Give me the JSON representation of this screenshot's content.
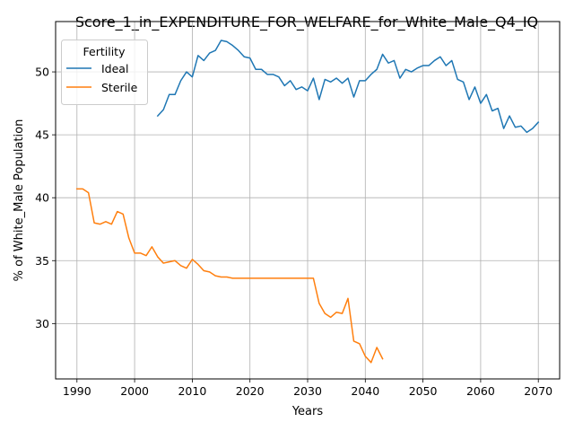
{
  "chart_data": {
    "type": "line",
    "title": "Score_1_in_EXPENDITURE_FOR_WELFARE_for_White_Male_Q4_IQ",
    "xlabel": "Years",
    "ylabel": "% of White_Male Population",
    "xlim": [
      1986.3,
      2073.7
    ],
    "ylim": [
      25.6,
      54.0
    ],
    "xticks": [
      1990,
      2000,
      2010,
      2020,
      2030,
      2040,
      2050,
      2060,
      2070
    ],
    "yticks": [
      30,
      35,
      40,
      45,
      50
    ],
    "grid": true,
    "legend": {
      "title": "Fertility",
      "placement": "upper-left"
    },
    "series": [
      {
        "name": "Ideal",
        "color": "#1f77b4",
        "x": [
          2004,
          2005,
          2006,
          2007,
          2008,
          2009,
          2010,
          2011,
          2012,
          2013,
          2014,
          2015,
          2016,
          2017,
          2018,
          2019,
          2020,
          2021,
          2022,
          2023,
          2024,
          2025,
          2026,
          2027,
          2028,
          2029,
          2030,
          2031,
          2032,
          2033,
          2034,
          2035,
          2036,
          2037,
          2038,
          2039,
          2040,
          2041,
          2042,
          2043,
          2044,
          2045,
          2046,
          2047,
          2048,
          2049,
          2050,
          2051,
          2052,
          2053,
          2054,
          2055,
          2056,
          2057,
          2058,
          2059,
          2060,
          2061,
          2062,
          2063,
          2064,
          2065,
          2066,
          2067,
          2068,
          2069,
          2070
        ],
        "values": [
          46.5,
          47.0,
          48.2,
          48.2,
          49.3,
          50.0,
          49.6,
          51.3,
          50.9,
          51.5,
          51.7,
          52.5,
          52.4,
          52.1,
          51.7,
          51.2,
          51.1,
          50.2,
          50.2,
          49.8,
          49.8,
          49.6,
          48.9,
          49.3,
          48.6,
          48.8,
          48.5,
          49.5,
          47.8,
          49.4,
          49.2,
          49.5,
          49.1,
          49.5,
          48.0,
          49.3,
          49.3,
          49.8,
          50.2,
          51.4,
          50.7,
          50.9,
          49.5,
          50.2,
          50.0,
          50.3,
          50.5,
          50.5,
          50.9,
          51.2,
          50.5,
          50.9,
          49.4,
          49.2,
          47.8,
          48.8,
          47.5,
          48.2,
          46.9,
          47.1,
          45.5,
          46.5,
          45.6,
          45.7,
          45.2,
          45.5,
          46.0
        ]
      },
      {
        "name": "Sterile",
        "color": "#ff7f0e",
        "x": [
          1990,
          1991,
          1992,
          1993,
          1994,
          1995,
          1996,
          1997,
          1998,
          1999,
          2000,
          2001,
          2002,
          2003,
          2004,
          2005,
          2006,
          2007,
          2008,
          2009,
          2010,
          2011,
          2012,
          2013,
          2014,
          2015,
          2016,
          2017,
          2018,
          2019,
          2020,
          2021,
          2022,
          2023,
          2024,
          2025,
          2026,
          2027,
          2028,
          2029,
          2030,
          2031,
          2032,
          2033,
          2034,
          2035,
          2036,
          2037,
          2038,
          2039,
          2040,
          2041,
          2042,
          2043
        ],
        "values": [
          40.7,
          40.7,
          40.4,
          38.0,
          37.9,
          38.1,
          37.9,
          38.9,
          38.7,
          36.8,
          35.6,
          35.6,
          35.4,
          36.1,
          35.3,
          34.8,
          34.9,
          35.0,
          34.6,
          34.4,
          35.1,
          34.7,
          34.2,
          34.1,
          33.8,
          33.7,
          33.7,
          33.6,
          33.6,
          33.6,
          33.6,
          33.6,
          33.6,
          33.6,
          33.6,
          33.6,
          33.6,
          33.6,
          33.6,
          33.6,
          33.6,
          33.6,
          31.6,
          30.8,
          30.5,
          30.9,
          30.8,
          32.0,
          28.6,
          28.4,
          27.4,
          26.9,
          28.1,
          27.2
        ]
      }
    ]
  }
}
